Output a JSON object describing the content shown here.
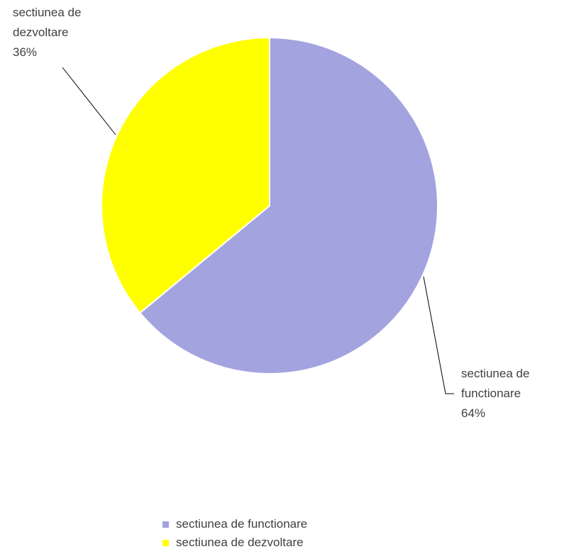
{
  "chart_data": {
    "type": "pie",
    "categories": [
      "sectiunea de functionare",
      "sectiunea de dezvoltare"
    ],
    "values": [
      64,
      36
    ],
    "value_labels": [
      "64%",
      "36%"
    ],
    "colors": [
      "#a3a3e0",
      "#ffff00"
    ]
  }
}
